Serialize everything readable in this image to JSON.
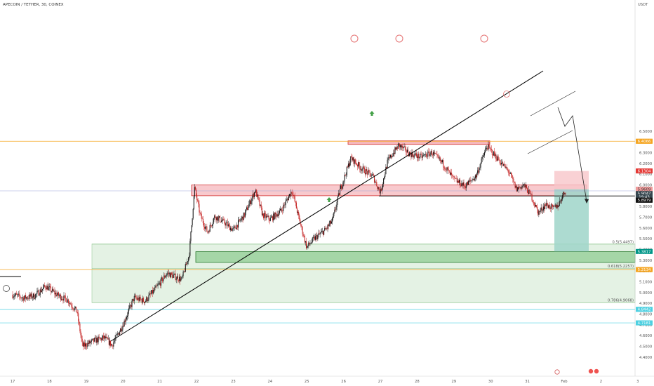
{
  "header": {
    "symbol_line": "APECOIN / TETHER, 30, COINEX"
  },
  "colors": {
    "up": "#1a1a1a",
    "down": "#c62828",
    "resistance_fill": "#f5b7bc",
    "resistance_stroke": "#d32f2f",
    "support_fill": "#a5d6a7",
    "support_stroke": "#2e7d32",
    "fib_fill": "#e4f2e4",
    "fib_stroke": "#2e7d32",
    "orange_line": "#f5a623",
    "cyan_line": "#4dd0e1",
    "stop_fill": "#f7c6c9",
    "target_fill": "#9fd5c9",
    "trend": "#000000"
  },
  "chart_data": {
    "type": "candlestick",
    "title": "APECOIN / TETHER, 30, COINEX",
    "y_unit_label": "USDT",
    "ylim": [
      4.3,
      6.55
    ],
    "yticks": [
      4.4,
      4.5,
      4.6,
      4.7,
      4.8,
      4.9,
      5.0,
      5.1,
      5.2,
      5.3,
      5.4,
      5.5,
      5.6,
      5.7,
      5.8,
      5.9,
      6.0,
      6.1,
      6.2,
      6.3,
      6.4,
      6.5
    ],
    "ytick_labels": [
      "4.4000",
      "4.5000",
      "4.6000",
      "4.7000",
      "4.8000",
      "4.9000",
      "5.0000",
      "5.1000",
      "5.2000",
      "5.3000",
      "5.4000",
      "5.5000",
      "5.6000",
      "5.7000",
      "5.8000",
      "5.9000",
      "6.0000",
      "6.1000",
      "6.2000",
      "6.3000",
      "6.4000",
      "6.5000"
    ],
    "xlim": [
      16.75,
      3.05
    ],
    "xtick_labels": [
      "17",
      "18",
      "19",
      "20",
      "21",
      "22",
      "23",
      "24",
      "25",
      "26",
      "27",
      "28",
      "29",
      "30",
      "31",
      "Feb",
      "2",
      "3"
    ],
    "xtick_days": [
      17,
      18,
      19,
      20,
      21,
      22,
      23,
      24,
      25,
      26,
      27,
      28,
      29,
      30,
      31,
      32,
      33,
      34
    ],
    "price_path": [
      [
        17.0,
        4.98
      ],
      [
        17.3,
        4.95
      ],
      [
        17.6,
        4.97
      ],
      [
        17.9,
        5.06
      ],
      [
        18.2,
        4.98
      ],
      [
        18.5,
        4.93
      ],
      [
        18.75,
        4.82
      ],
      [
        18.9,
        4.5
      ],
      [
        19.2,
        4.55
      ],
      [
        19.5,
        4.58
      ],
      [
        19.7,
        4.51
      ],
      [
        20.0,
        4.7
      ],
      [
        20.3,
        4.95
      ],
      [
        20.6,
        4.92
      ],
      [
        20.9,
        5.04
      ],
      [
        21.2,
        5.18
      ],
      [
        21.6,
        5.12
      ],
      [
        21.8,
        5.35
      ],
      [
        21.95,
        5.97
      ],
      [
        22.1,
        5.72
      ],
      [
        22.3,
        5.56
      ],
      [
        22.5,
        5.71
      ],
      [
        22.8,
        5.64
      ],
      [
        23.0,
        5.58
      ],
      [
        23.3,
        5.72
      ],
      [
        23.6,
        5.95
      ],
      [
        23.8,
        5.72
      ],
      [
        24.0,
        5.68
      ],
      [
        24.3,
        5.76
      ],
      [
        24.6,
        5.95
      ],
      [
        24.8,
        5.67
      ],
      [
        25.0,
        5.42
      ],
      [
        25.2,
        5.5
      ],
      [
        25.5,
        5.58
      ],
      [
        25.7,
        5.67
      ],
      [
        25.9,
        5.95
      ],
      [
        26.2,
        6.25
      ],
      [
        26.5,
        6.15
      ],
      [
        26.8,
        6.08
      ],
      [
        27.0,
        5.93
      ],
      [
        27.2,
        6.22
      ],
      [
        27.5,
        6.37
      ],
      [
        27.8,
        6.29
      ],
      [
        28.1,
        6.26
      ],
      [
        28.4,
        6.3
      ],
      [
        28.7,
        6.2
      ],
      [
        29.0,
        6.05
      ],
      [
        29.3,
        5.99
      ],
      [
        29.6,
        6.08
      ],
      [
        29.9,
        6.36
      ],
      [
        30.2,
        6.24
      ],
      [
        30.5,
        6.12
      ],
      [
        30.7,
        5.96
      ],
      [
        30.9,
        6.0
      ],
      [
        31.1,
        5.9
      ],
      [
        31.3,
        5.74
      ],
      [
        31.5,
        5.82
      ],
      [
        31.7,
        5.78
      ],
      [
        31.85,
        5.82
      ],
      [
        31.95,
        5.9
      ],
      [
        32.05,
        5.95
      ]
    ],
    "levels": {
      "orange_top": 6.4066,
      "price_current": 5.9047,
      "pink_level": 5.9609,
      "black_level": 5.8979,
      "red_badge": 6.1304,
      "target": 5.3817,
      "fib_0618": 5.2134,
      "cyan_1": 4.8442,
      "cyan_2": 4.7181
    },
    "annotations": {
      "fib_0_5": "0.5(5.4497)",
      "fib_0_618": "0.618(5.2257)",
      "fib_0_786": "0.786(4.9068)",
      "fib_0_5_price": 5.4497,
      "fib_0_618_price": 5.2257,
      "fib_0_786_price": 4.9068
    },
    "right_badges": [
      {
        "text": "6.4066",
        "price": 6.4066,
        "bg": "#f5a623",
        "fg": "#ffffff"
      },
      {
        "text": "6.1304",
        "price": 6.1304,
        "bg": "#e53935",
        "fg": "#ffffff"
      },
      {
        "text": "5.9609",
        "price": 5.9609,
        "bg": "#ef9a9a",
        "fg": "#333333"
      },
      {
        "text": "5.9047",
        "price": 5.9205,
        "bg": "#37474f",
        "fg": "#ffffff"
      },
      {
        "text": "19:43",
        "price": 5.8895,
        "bg": "#37474f",
        "fg": "#ffffff"
      },
      {
        "text": "5.8979",
        "price": 5.8585,
        "bg": "#111111",
        "fg": "#ffffff"
      },
      {
        "text": "5.3817",
        "price": 5.3817,
        "bg": "#009688",
        "fg": "#ffffff"
      },
      {
        "text": "5.2134",
        "price": 5.2134,
        "bg": "#f5a623",
        "fg": "#ffffff"
      },
      {
        "text": "4.8442",
        "price": 4.8442,
        "bg": "#4dd0e1",
        "fg": "#ffffff"
      },
      {
        "text": "4.7181",
        "price": 4.7181,
        "bg": "#4dd0e1",
        "fg": "#ffffff"
      }
    ]
  }
}
